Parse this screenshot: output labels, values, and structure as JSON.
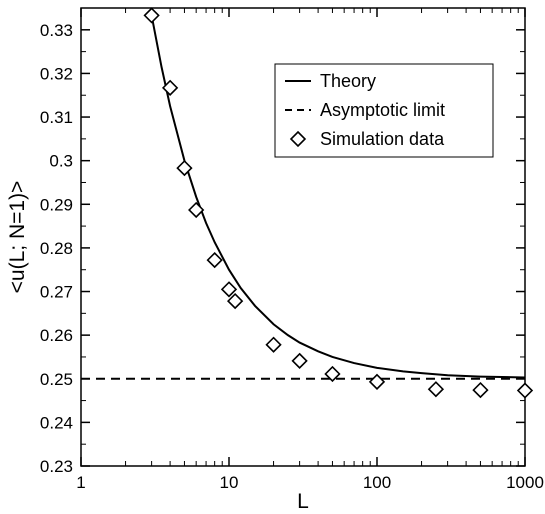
{
  "chart_data": {
    "type": "scatter",
    "xlabel": "L",
    "ylabel": "<u(L; N=1)>",
    "xscale": "log",
    "xlim": [
      1,
      1000
    ],
    "ylim": [
      0.23,
      0.335
    ],
    "x_ticks": [
      1,
      10,
      100,
      1000
    ],
    "x_tick_labels": [
      "1",
      "10",
      "100",
      "1000"
    ],
    "y_ticks": [
      0.23,
      0.24,
      0.25,
      0.26,
      0.27,
      0.28,
      0.29,
      0.3,
      0.31,
      0.32,
      0.33
    ],
    "y_tick_labels": [
      "0.23",
      "0.24",
      "0.25",
      "0.26",
      "0.27",
      "0.28",
      "0.29",
      "0.3",
      "0.31",
      "0.32",
      "0.33"
    ],
    "grid": false,
    "legend_position": "top-right",
    "series": [
      {
        "name": "Theory",
        "style": "solid-line",
        "x": [
          3,
          3.5,
          4,
          5,
          6,
          7,
          8,
          10,
          12,
          15,
          20,
          25,
          30,
          40,
          50,
          70,
          100,
          150,
          200,
          300,
          500,
          700,
          1000
        ],
        "y": [
          0.3333,
          0.3215,
          0.3125,
          0.3,
          0.2917,
          0.2857,
          0.2813,
          0.275,
          0.2708,
          0.2667,
          0.2625,
          0.26,
          0.2583,
          0.2563,
          0.255,
          0.2536,
          0.2525,
          0.2517,
          0.2513,
          0.2508,
          0.2505,
          0.2504,
          0.2503
        ]
      },
      {
        "name": "Asymptotic limit",
        "style": "dashed-line",
        "x": [
          1,
          1000
        ],
        "y": [
          0.25,
          0.25
        ]
      },
      {
        "name": "Simulation data",
        "style": "open-diamond-markers",
        "x": [
          3,
          4,
          5,
          6,
          8,
          10,
          11,
          20,
          30,
          50,
          100,
          250,
          500,
          1000
        ],
        "y": [
          0.3333,
          0.3167,
          0.2983,
          0.2887,
          0.2772,
          0.2705,
          0.2678,
          0.2578,
          0.2541,
          0.2511,
          0.2493,
          0.2476,
          0.2474,
          0.2473
        ]
      }
    ]
  }
}
